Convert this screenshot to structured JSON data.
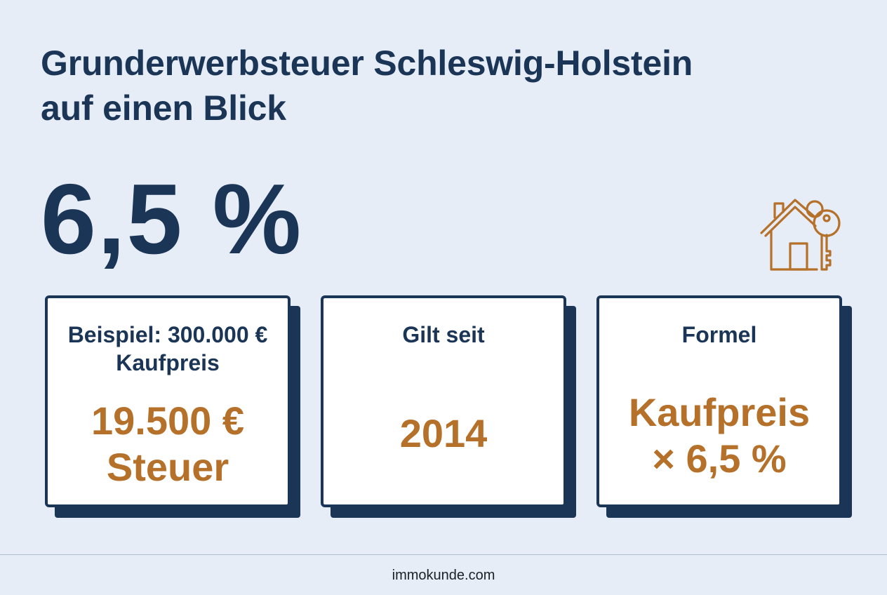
{
  "headline": {
    "line1": "Grunderwerbsteuer Schleswig-Holstein",
    "line2": "auf einen Blick"
  },
  "rate": "6,5 %",
  "icons": {
    "house": "house-with-key-icon"
  },
  "colors": {
    "primary": "#1b3557",
    "accent": "#b5702a",
    "background": "#e6edf6"
  },
  "cards": [
    {
      "label_line1": "Beispiel: 300.000 €",
      "label_line2": "Kaufpreis",
      "value_line1": "19.500 €",
      "value_line2": "Steuer"
    },
    {
      "label_line1": "Gilt seit",
      "value_line1": "2014"
    },
    {
      "label_line1": "Formel",
      "value_line1": "Kaufpreis",
      "value_line2": "× 6,5 %"
    }
  ],
  "footer": "immokunde.com"
}
